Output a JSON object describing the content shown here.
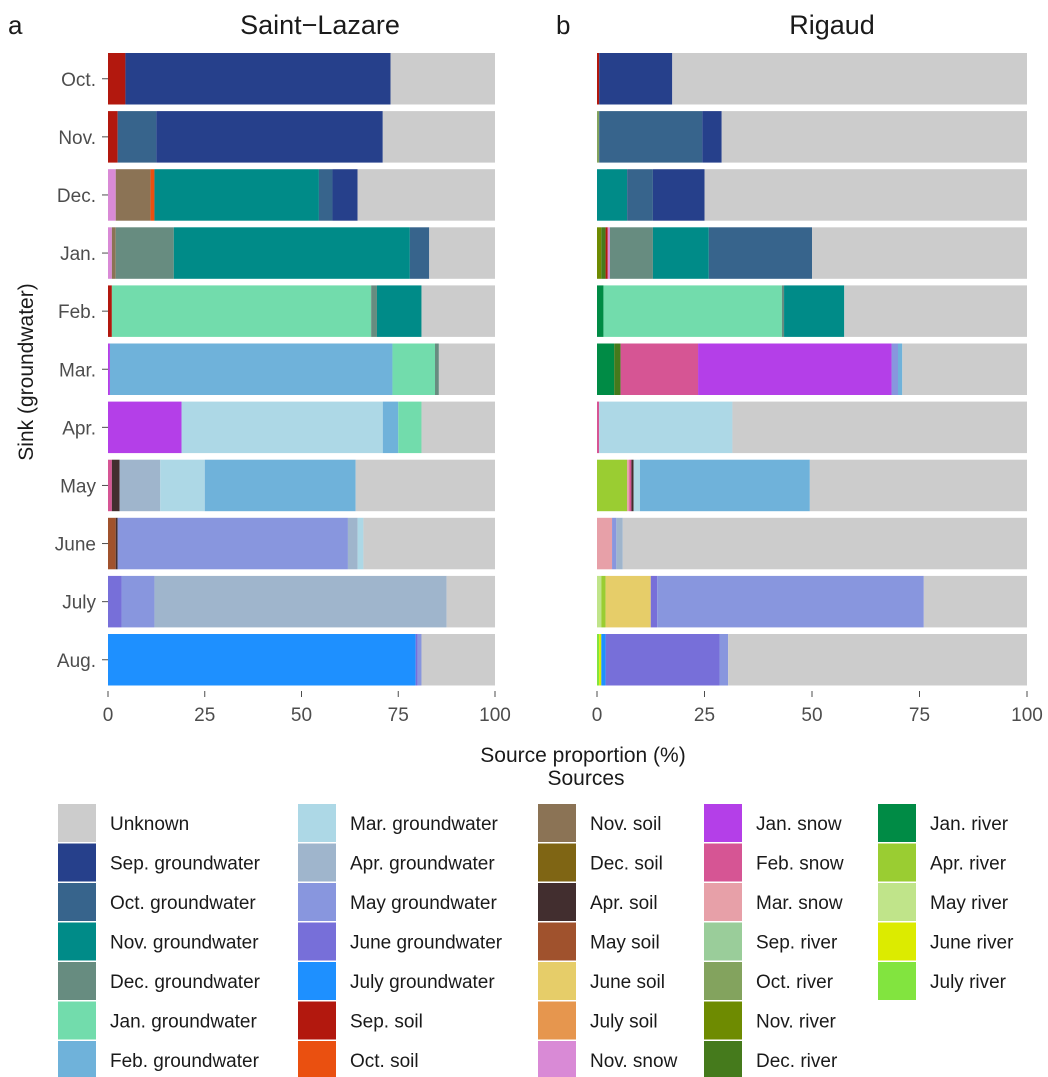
{
  "chart_data": {
    "type": "bar",
    "orientation": "horizontal",
    "stacked": true,
    "y_axis_label": "Sink (groundwater)",
    "x_axis_label": "Source proportion (%)",
    "xlim": [
      0,
      100
    ],
    "x_ticks": [
      "0",
      "25",
      "50",
      "75",
      "100"
    ],
    "categories": [
      "Oct.",
      "Nov.",
      "Dec.",
      "Jan.",
      "Feb.",
      "Mar.",
      "Apr.",
      "May",
      "June",
      "July",
      "Aug."
    ],
    "legend": {
      "title": "Sources",
      "position": "bottom",
      "entries": [
        {
          "name": "Unknown",
          "color": "#cccccc"
        },
        {
          "name": "Sep. groundwater",
          "color": "#26408b"
        },
        {
          "name": "Oct. groundwater",
          "color": "#37648c"
        },
        {
          "name": "Nov. groundwater",
          "color": "#008b88"
        },
        {
          "name": "Dec. groundwater",
          "color": "#678c80"
        },
        {
          "name": "Jan. groundwater",
          "color": "#72dcac"
        },
        {
          "name": "Feb. groundwater",
          "color": "#6fb2da"
        },
        {
          "name": "Mar. groundwater",
          "color": "#add8e6"
        },
        {
          "name": "Apr. groundwater",
          "color": "#9fb5cc"
        },
        {
          "name": "May groundwater",
          "color": "#8896de"
        },
        {
          "name": "June groundwater",
          "color": "#776fd9"
        },
        {
          "name": "July groundwater",
          "color": "#1e90ff"
        },
        {
          "name": "Sep. soil",
          "color": "#b2180e"
        },
        {
          "name": "Oct. soil",
          "color": "#ea5010"
        },
        {
          "name": "Nov. soil",
          "color": "#8b7355"
        },
        {
          "name": "Dec. soil",
          "color": "#7f6514"
        },
        {
          "name": "Apr. soil",
          "color": "#422e2f"
        },
        {
          "name": "May soil",
          "color": "#a0522d"
        },
        {
          "name": "June soil",
          "color": "#e6cd69"
        },
        {
          "name": "July soil",
          "color": "#e6964e"
        },
        {
          "name": "Nov. snow",
          "color": "#d98ad6"
        },
        {
          "name": "Jan. snow",
          "color": "#b43fe8"
        },
        {
          "name": "Feb. snow",
          "color": "#d65594"
        },
        {
          "name": "Mar. snow",
          "color": "#e7a0a8"
        },
        {
          "name": "Sep. river",
          "color": "#9acd9a"
        },
        {
          "name": "Oct. river",
          "color": "#83a35e"
        },
        {
          "name": "Nov. river",
          "color": "#6e8b01"
        },
        {
          "name": "Dec. river",
          "color": "#457a1c"
        },
        {
          "name": "Jan. river",
          "color": "#008b45"
        },
        {
          "name": "Apr. river",
          "color": "#9acd32"
        },
        {
          "name": "May river",
          "color": "#c0e48a"
        },
        {
          "name": "June river",
          "color": "#dceb00"
        },
        {
          "name": "July river",
          "color": "#82e43f"
        }
      ]
    },
    "panels": [
      {
        "letter": "a",
        "title": "Saint−Lazare",
        "bars": [
          {
            "category": "Oct.",
            "segments": [
              [
                "Sep. soil",
                4.5
              ],
              [
                "Sep. groundwater",
                68.5
              ],
              [
                "Unknown",
                27
              ]
            ]
          },
          {
            "category": "Nov.",
            "segments": [
              [
                "Sep. soil",
                2.5
              ],
              [
                "Oct. groundwater",
                10
              ],
              [
                "Sep. groundwater",
                58.5
              ],
              [
                "Unknown",
                29
              ]
            ]
          },
          {
            "category": "Dec.",
            "segments": [
              [
                "Nov. snow",
                2
              ],
              [
                "Nov. soil",
                9
              ],
              [
                "Oct. soil",
                1
              ],
              [
                "Nov. groundwater",
                42.5
              ],
              [
                "Oct. groundwater",
                3.5
              ],
              [
                "Sep. groundwater",
                6.5
              ],
              [
                "Unknown",
                35.5
              ]
            ]
          },
          {
            "category": "Jan.",
            "segments": [
              [
                "Nov. snow",
                1
              ],
              [
                "Nov. soil",
                1
              ],
              [
                "Dec. groundwater",
                15
              ],
              [
                "Nov. groundwater",
                61
              ],
              [
                "Oct. groundwater",
                5
              ],
              [
                "Unknown",
                17
              ]
            ]
          },
          {
            "category": "Feb.",
            "segments": [
              [
                "Sep. soil",
                1
              ],
              [
                "Jan. groundwater",
                67
              ],
              [
                "Dec. groundwater",
                1.5
              ],
              [
                "Nov. groundwater",
                11.5
              ],
              [
                "Unknown",
                19
              ]
            ]
          },
          {
            "category": "Mar.",
            "segments": [
              [
                "Jan. snow",
                0.5
              ],
              [
                "Feb. groundwater",
                73
              ],
              [
                "Jan. groundwater",
                11
              ],
              [
                "Dec. groundwater",
                1
              ],
              [
                "Unknown",
                14.5
              ]
            ]
          },
          {
            "category": "Apr.",
            "segments": [
              [
                "Jan. snow",
                19
              ],
              [
                "Mar. groundwater",
                52
              ],
              [
                "Feb. groundwater",
                4
              ],
              [
                "Jan. groundwater",
                6
              ],
              [
                "Unknown",
                19
              ]
            ]
          },
          {
            "category": "May",
            "segments": [
              [
                "Feb. snow",
                1
              ],
              [
                "Apr. soil",
                2
              ],
              [
                "Apr. groundwater",
                10.5
              ],
              [
                "Mar. groundwater",
                11.5
              ],
              [
                "Feb. groundwater",
                39
              ],
              [
                "Unknown",
                36
              ]
            ]
          },
          {
            "category": "June",
            "segments": [
              [
                "May soil",
                2
              ],
              [
                "Apr. soil",
                0.5
              ],
              [
                "May groundwater",
                59.5
              ],
              [
                "Apr. groundwater",
                2.5
              ],
              [
                "Mar. groundwater",
                1.5
              ],
              [
                "Unknown",
                34
              ]
            ]
          },
          {
            "category": "July",
            "segments": [
              [
                "June groundwater",
                3.5
              ],
              [
                "May groundwater",
                8.5
              ],
              [
                "Apr. groundwater",
                75.5
              ],
              [
                "Unknown",
                12.5
              ]
            ]
          },
          {
            "category": "Aug.",
            "segments": [
              [
                "July groundwater",
                79.5
              ],
              [
                "June groundwater",
                0.5
              ],
              [
                "May groundwater",
                1
              ],
              [
                "Unknown",
                19
              ]
            ]
          }
        ]
      },
      {
        "letter": "b",
        "title": "Rigaud",
        "bars": [
          {
            "category": "Oct.",
            "segments": [
              [
                "Sep. soil",
                0.5
              ],
              [
                "Sep. groundwater",
                17
              ],
              [
                "Unknown",
                82.5
              ]
            ]
          },
          {
            "category": "Nov.",
            "segments": [
              [
                "Oct. river",
                0.5
              ],
              [
                "Oct. groundwater",
                24
              ],
              [
                "Sep. groundwater",
                4.5
              ],
              [
                "Unknown",
                71
              ]
            ]
          },
          {
            "category": "Dec.",
            "segments": [
              [
                "Nov. groundwater",
                7
              ],
              [
                "Oct. groundwater",
                6
              ],
              [
                "Sep. groundwater",
                12
              ],
              [
                "Unknown",
                75
              ]
            ]
          },
          {
            "category": "Jan.",
            "segments": [
              [
                "Nov. river",
                1
              ],
              [
                "Dec. river",
                1
              ],
              [
                "Sep. soil",
                0.5
              ],
              [
                "Nov. snow",
                0.5
              ],
              [
                "Dec. groundwater",
                10
              ],
              [
                "Nov. groundwater",
                13
              ],
              [
                "Oct. groundwater",
                24
              ],
              [
                "Unknown",
                50
              ]
            ]
          },
          {
            "category": "Feb.",
            "segments": [
              [
                "Jan. river",
                1.5
              ],
              [
                "Jan. groundwater",
                41.5
              ],
              [
                "Dec. groundwater",
                0.5
              ],
              [
                "Nov. groundwater",
                14
              ],
              [
                "Unknown",
                42.5
              ]
            ]
          },
          {
            "category": "Mar.",
            "segments": [
              [
                "Jan. river",
                4
              ],
              [
                "Dec. river",
                1.5
              ],
              [
                "Feb. snow",
                18
              ],
              [
                "Jan. snow",
                45
              ],
              [
                "May groundwater",
                1.5
              ],
              [
                "Feb. groundwater",
                1
              ],
              [
                "Unknown",
                29
              ]
            ]
          },
          {
            "category": "Apr.",
            "segments": [
              [
                "Feb. snow",
                0.5
              ],
              [
                "Mar. groundwater",
                31
              ],
              [
                "Unknown",
                68.5
              ]
            ]
          },
          {
            "category": "May",
            "segments": [
              [
                "Apr. river",
                7
              ],
              [
                "Mar. snow",
                0.5
              ],
              [
                "Feb. snow",
                0.5
              ],
              [
                "Apr. soil",
                0.5
              ],
              [
                "Mar. groundwater",
                1.5
              ],
              [
                "Feb. groundwater",
                39.5
              ],
              [
                "Unknown",
                50.5
              ]
            ]
          },
          {
            "category": "June",
            "segments": [
              [
                "Mar. snow",
                3.5
              ],
              [
                "May groundwater",
                1
              ],
              [
                "Apr. groundwater",
                1.5
              ],
              [
                "Unknown",
                94
              ]
            ]
          },
          {
            "category": "July",
            "segments": [
              [
                "May river",
                1
              ],
              [
                "Apr. river",
                1
              ],
              [
                "June soil",
                10.5
              ],
              [
                "June groundwater",
                1.5
              ],
              [
                "May groundwater",
                62
              ],
              [
                "Unknown",
                24
              ]
            ]
          },
          {
            "category": "Aug.",
            "segments": [
              [
                "July river",
                0.5
              ],
              [
                "June river",
                0.5
              ],
              [
                "July groundwater",
                1
              ],
              [
                "June groundwater",
                26.5
              ],
              [
                "May groundwater",
                2
              ],
              [
                "Unknown",
                69.5
              ]
            ]
          }
        ]
      }
    ]
  }
}
